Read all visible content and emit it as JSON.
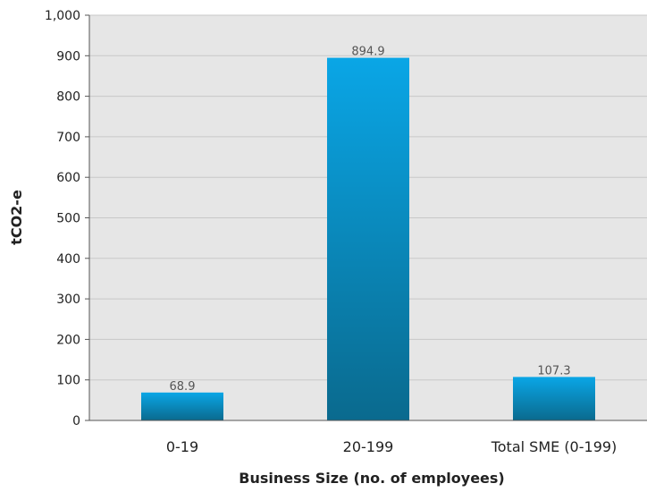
{
  "chart_data": {
    "type": "bar",
    "title": "",
    "categories": [
      "0-19",
      "20-199",
      "Total SME (0-199)"
    ],
    "values": [
      68.9,
      894.9,
      107.3
    ],
    "data_labels": [
      "68.9",
      "894.9",
      "107.3"
    ],
    "xlabel": "Business Size (no. of employees)",
    "ylabel": "tCO2-e",
    "ylim": [
      0,
      1000
    ],
    "yticks": [
      0,
      100,
      200,
      300,
      400,
      500,
      600,
      700,
      800,
      900,
      1000
    ],
    "ytick_labels": [
      "0",
      "100",
      "200",
      "300",
      "400",
      "500",
      "600",
      "700",
      "800",
      "900",
      "1,000"
    ],
    "grid": true,
    "legend": "none",
    "colors": {
      "plot_background": "#e6e6e6",
      "gridline": "#c8c8c8",
      "bar_top": "#0aa6e6",
      "bar_bottom": "#0a6a8e"
    }
  }
}
